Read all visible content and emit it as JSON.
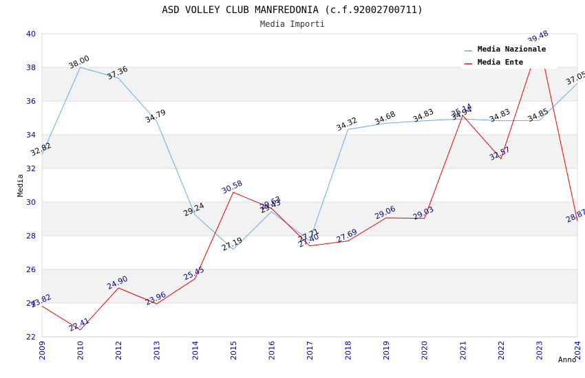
{
  "chart_data": {
    "type": "line",
    "title": "ASD VOLLEY CLUB MANFREDONIA (c.f.92002700711)",
    "subtitle": "Media Importi",
    "xlabel": "Anno",
    "ylabel": "Media",
    "categories": [
      "2009",
      "2010",
      "2012",
      "2013",
      "2014",
      "2015",
      "2016",
      "2017",
      "2018",
      "2019",
      "2020",
      "2021",
      "2022",
      "2023",
      "2024"
    ],
    "ylim": [
      22,
      40
    ],
    "yticks": [
      22,
      24,
      26,
      28,
      30,
      32,
      34,
      36,
      38,
      40
    ],
    "grid": true,
    "legend_position": "top-right",
    "series": [
      {
        "name": "Media Nazionale",
        "color": "#66aaee",
        "label_color": "#000000",
        "values": [
          32.82,
          38.0,
          37.36,
          34.79,
          29.24,
          27.19,
          29.43,
          27.71,
          34.32,
          34.68,
          34.83,
          34.94,
          34.83,
          34.85,
          37.05
        ],
        "labels": [
          "32.82",
          "38.00",
          "37.36",
          "34.79",
          "29.24",
          "27.19",
          "29.43",
          "27.71",
          "34.32",
          "34.68",
          "34.83",
          "34.94",
          "34.83",
          "34.85",
          "37.05"
        ]
      },
      {
        "name": "Media Ente",
        "color": "#ee0000",
        "label_color": "#000088",
        "values": [
          23.82,
          22.41,
          24.9,
          23.96,
          25.45,
          30.58,
          29.63,
          27.4,
          27.69,
          29.06,
          29.03,
          35.14,
          32.57,
          39.48,
          28.87
        ],
        "labels": [
          "23.82",
          "22.41",
          "24.90",
          "23.96",
          "25.45",
          "30.58",
          "29.63",
          "27.40",
          "27.69",
          "29.06",
          "29.03",
          "35.14",
          "32.57",
          "39.48",
          "28.87"
        ]
      }
    ]
  }
}
